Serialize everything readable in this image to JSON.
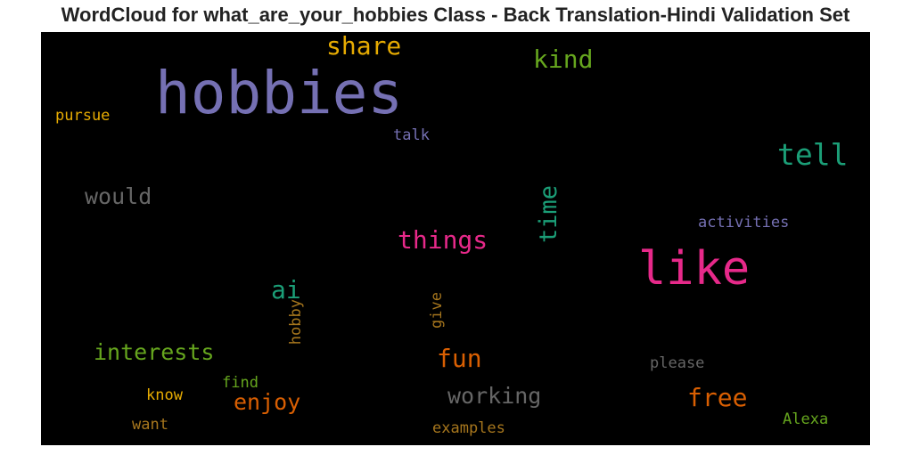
{
  "title": "WordCloud for what_are_your_hobbies Class - Back Translation-Hindi Validation Set",
  "words": [
    {
      "text": "hobbies",
      "color": "#7570b3"
    },
    {
      "text": "like",
      "color": "#e7298a"
    },
    {
      "text": "share",
      "color": "#e6ab02"
    },
    {
      "text": "kind",
      "color": "#66a61e"
    },
    {
      "text": "pursue",
      "color": "#e6ab02"
    },
    {
      "text": "talk",
      "color": "#7570b3"
    },
    {
      "text": "tell",
      "color": "#1b9e77"
    },
    {
      "text": "would",
      "color": "#666666"
    },
    {
      "text": "time",
      "color": "#1b9e77"
    },
    {
      "text": "activities",
      "color": "#7570b3"
    },
    {
      "text": "things",
      "color": "#e7298a"
    },
    {
      "text": "ai",
      "color": "#1b9e77"
    },
    {
      "text": "hobby",
      "color": "#a6761d"
    },
    {
      "text": "give",
      "color": "#a6761d"
    },
    {
      "text": "interests",
      "color": "#66a61e"
    },
    {
      "text": "fun",
      "color": "#d95f02"
    },
    {
      "text": "please",
      "color": "#666666"
    },
    {
      "text": "find",
      "color": "#66a61e"
    },
    {
      "text": "know",
      "color": "#e6ab02"
    },
    {
      "text": "enjoy",
      "color": "#d95f02"
    },
    {
      "text": "working",
      "color": "#666666"
    },
    {
      "text": "free",
      "color": "#d95f02"
    },
    {
      "text": "Alexa",
      "color": "#66a61e"
    },
    {
      "text": "want",
      "color": "#a6761d"
    },
    {
      "text": "examples",
      "color": "#a6761d"
    }
  ]
}
